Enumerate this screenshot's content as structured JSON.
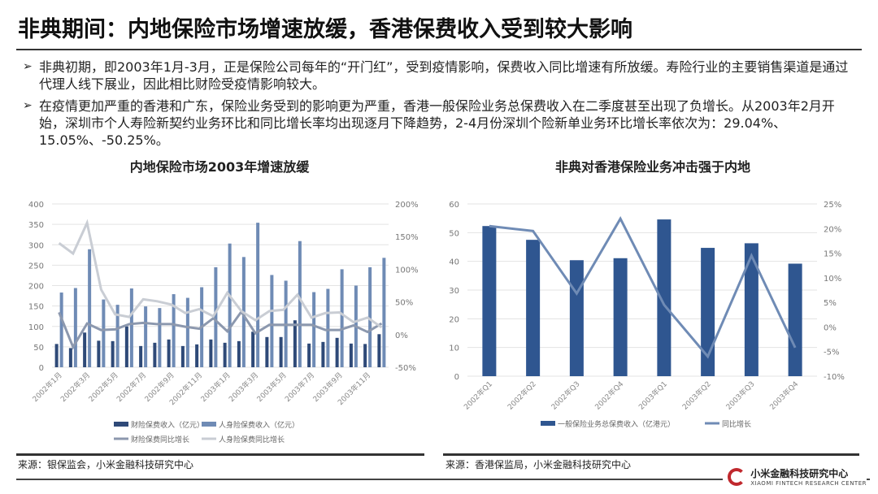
{
  "title": "非典期间：内地保险市场增速放缓，香港保费收入受到较大影响",
  "bullets": [
    "非典初期，即2003年1月-3月，正是保险公司每年的“开门红”，受到疫情影响，保费收入同比增速有所放缓。寿险行业的主要销售渠道是通过代理人线下展业，因此相比财险受疫情影响较大。",
    "在疫情更加严重的香港和广东，保险业务受到的影响更为严重，香港一般保险业务总保费收入在二季度甚至出现了负增长。从2003年2月开始，深圳市个人寿险新契约业务环比和同比增长率均出现逐月下降趋势，2-4月份深圳个险新单业务环比增长率依次为：29.04%、15.05%、-50.25%。"
  ],
  "bullet_icon": "arrow-right-icon",
  "sources": [
    "来源：银保监会，小米金融科技研究中心",
    "来源：香港保监局，小米金融科技研究中心"
  ],
  "logo": {
    "name": "小米金融科技研究中心",
    "en": "XIAOMI FINTECH RESEARCH CENTER"
  },
  "chart_data": [
    {
      "type": "bar+line",
      "title": "内地保险市场2003年增速放缓",
      "categories": [
        "2002年1月",
        "2002年2月",
        "2002年3月",
        "2002年4月",
        "2002年5月",
        "2002年6月",
        "2002年7月",
        "2002年8月",
        "2002年9月",
        "2002年10月",
        "2002年11月",
        "2002年12月",
        "2003年1月",
        "2003年2月",
        "2003年3月",
        "2003年4月",
        "2003年5月",
        "2003年6月",
        "2003年7月",
        "2003年8月",
        "2003年9月",
        "2003年10月",
        "2003年11月",
        "2003年12月"
      ],
      "tick_labels": [
        "2002年1月",
        "2002年3月",
        "2002年5月",
        "2002年7月",
        "2002年9月",
        "2002年11月",
        "2003年1月",
        "2003年3月",
        "2003年5月",
        "2003年7月",
        "2003年9月",
        "2003年11月"
      ],
      "ylim": [
        0,
        400
      ],
      "yticks": [
        0,
        50,
        100,
        150,
        200,
        250,
        300,
        350,
        400
      ],
      "y2lim": [
        -50,
        200
      ],
      "y2ticks": [
        "-50%",
        "0%",
        "50%",
        "100%",
        "150%",
        "200%"
      ],
      "series": [
        {
          "name": "财险保费收入（亿元）",
          "type": "bar",
          "axis": "left",
          "color": "#2f4a78",
          "values": [
            57,
            47,
            85,
            65,
            64,
            100,
            52,
            60,
            68,
            52,
            56,
            68,
            60,
            64,
            87,
            74,
            74,
            115,
            58,
            62,
            72,
            58,
            57,
            81
          ]
        },
        {
          "name": "人身险保费收入（亿元）",
          "type": "bar",
          "axis": "left",
          "color": "#6f8bb5",
          "values": [
            183,
            194,
            289,
            166,
            153,
            193,
            149,
            145,
            179,
            170,
            196,
            245,
            303,
            270,
            354,
            226,
            212,
            309,
            184,
            192,
            240,
            200,
            245,
            268
          ]
        },
        {
          "name": "财险保费同比增长",
          "type": "line",
          "axis": "right",
          "color": "#8c98ae",
          "values": [
            34,
            -19,
            17,
            7,
            8,
            16,
            18,
            16,
            16,
            12,
            9,
            25,
            5,
            35,
            2,
            15,
            15,
            15,
            15,
            7,
            7,
            14,
            4,
            17
          ]
        },
        {
          "name": "人身险保费同比增长",
          "type": "line",
          "axis": "right",
          "color": "#c9cdd4",
          "values": [
            140,
            124,
            171,
            69,
            31,
            27,
            54,
            51,
            46,
            33,
            39,
            28,
            64,
            36,
            22,
            36,
            38,
            61,
            26,
            33,
            34,
            19,
            26,
            11
          ]
        }
      ]
    },
    {
      "type": "bar+line",
      "title": "非典对香港保险业务冲击强于内地",
      "categories": [
        "2002年Q1",
        "2002年Q2",
        "2002年Q3",
        "2002年Q4",
        "2003年Q1",
        "2003年Q2",
        "2003年Q3",
        "2003年Q4"
      ],
      "ylim": [
        0,
        60
      ],
      "yticks": [
        0,
        10,
        20,
        30,
        40,
        50,
        60
      ],
      "y2lim": [
        -10,
        25
      ],
      "y2ticks": [
        "-10%",
        "-5%",
        "0%",
        "5%",
        "10%",
        "15%",
        "20%",
        "25%"
      ],
      "series": [
        {
          "name": "一般保险业务总保费收入（亿港元）",
          "type": "bar",
          "axis": "left",
          "color": "#2f5690",
          "values": [
            52.3,
            47.5,
            40.4,
            41.1,
            54.6,
            44.7,
            46.3,
            39.2
          ]
        },
        {
          "name": "同比增长",
          "type": "line",
          "axis": "right",
          "color": "#6f8bb5",
          "values": [
            20.5,
            19.5,
            6.8,
            22,
            4.5,
            -6,
            14.5,
            -4.2
          ]
        }
      ]
    }
  ]
}
